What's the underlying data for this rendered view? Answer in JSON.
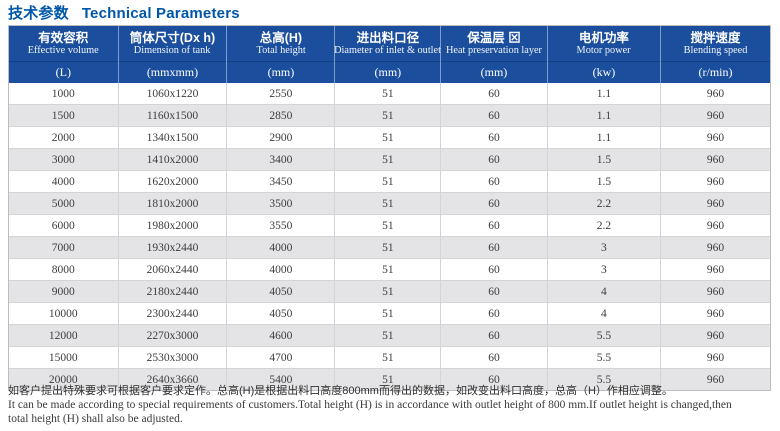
{
  "title": {
    "zh": "技术参数",
    "en": "Technical Parameters"
  },
  "table": {
    "columns": [
      {
        "zh": "有效容积",
        "en": "Effective volume",
        "unit": "(L)"
      },
      {
        "zh": "筒体尺寸(Dx h)",
        "en": "Dimension of tank",
        "unit": "(mmxmm)"
      },
      {
        "zh": "总高(H)",
        "en": "Total height",
        "unit": "(mm)"
      },
      {
        "zh": "进出料口径",
        "en": "Diameter of inlet & outlet",
        "unit": "(mm)"
      },
      {
        "zh": "保温层 ⊠",
        "en": "Heat preservation layer",
        "unit": "(mm)"
      },
      {
        "zh": "电机功率",
        "en": "Motor power",
        "unit": "(kw)"
      },
      {
        "zh": "搅拌速度",
        "en": "Blending speed",
        "unit": "(r/min)"
      }
    ],
    "rows": [
      [
        "1000",
        "1060x1220",
        "2550",
        "51",
        "60",
        "1.1",
        "960"
      ],
      [
        "1500",
        "1160x1500",
        "2850",
        "51",
        "60",
        "1.1",
        "960"
      ],
      [
        "2000",
        "1340x1500",
        "2900",
        "51",
        "60",
        "1.1",
        "960"
      ],
      [
        "3000",
        "1410x2000",
        "3400",
        "51",
        "60",
        "1.5",
        "960"
      ],
      [
        "4000",
        "1620x2000",
        "3450",
        "51",
        "60",
        "1.5",
        "960"
      ],
      [
        "5000",
        "1810x2000",
        "3500",
        "51",
        "60",
        "2.2",
        "960"
      ],
      [
        "6000",
        "1980x2000",
        "3550",
        "51",
        "60",
        "2.2",
        "960"
      ],
      [
        "7000",
        "1930x2440",
        "4000",
        "51",
        "60",
        "3",
        "960"
      ],
      [
        "8000",
        "2060x2440",
        "4000",
        "51",
        "60",
        "3",
        "960"
      ],
      [
        "9000",
        "2180x2440",
        "4050",
        "51",
        "60",
        "4",
        "960"
      ],
      [
        "10000",
        "2300x2440",
        "4050",
        "51",
        "60",
        "4",
        "960"
      ],
      [
        "12000",
        "2270x3000",
        "4600",
        "51",
        "60",
        "5.5",
        "960"
      ],
      [
        "15000",
        "2530x3000",
        "4700",
        "51",
        "60",
        "5.5",
        "960"
      ],
      [
        "20000",
        "2640x3660",
        "5400",
        "51",
        "60",
        "5.5",
        "960"
      ]
    ]
  },
  "footer": {
    "zh": "如客户提出特殊要求可根据客户要求定作。总高(H)是根据出料口高度800mm而得出的数据，如改变出料口高度，总高（H）作相应调整。",
    "en_line1": "It can be made according to special requirements of customers.Total height (H) is in accordance with outlet height of 800 mm.If outlet height is changed,then",
    "en_line2": "total height (H) shall also be adjusted."
  },
  "colors": {
    "title_blue": "#0057a9",
    "header_bg": "#1b4f9e",
    "header_text": "#ffffff",
    "row_alt_bg": "#e4e4e6",
    "row_bg": "#ffffff",
    "grid_line": "#d4d4d6",
    "outer_border": "#bcbcbe",
    "body_text": "#3d3d3f"
  }
}
